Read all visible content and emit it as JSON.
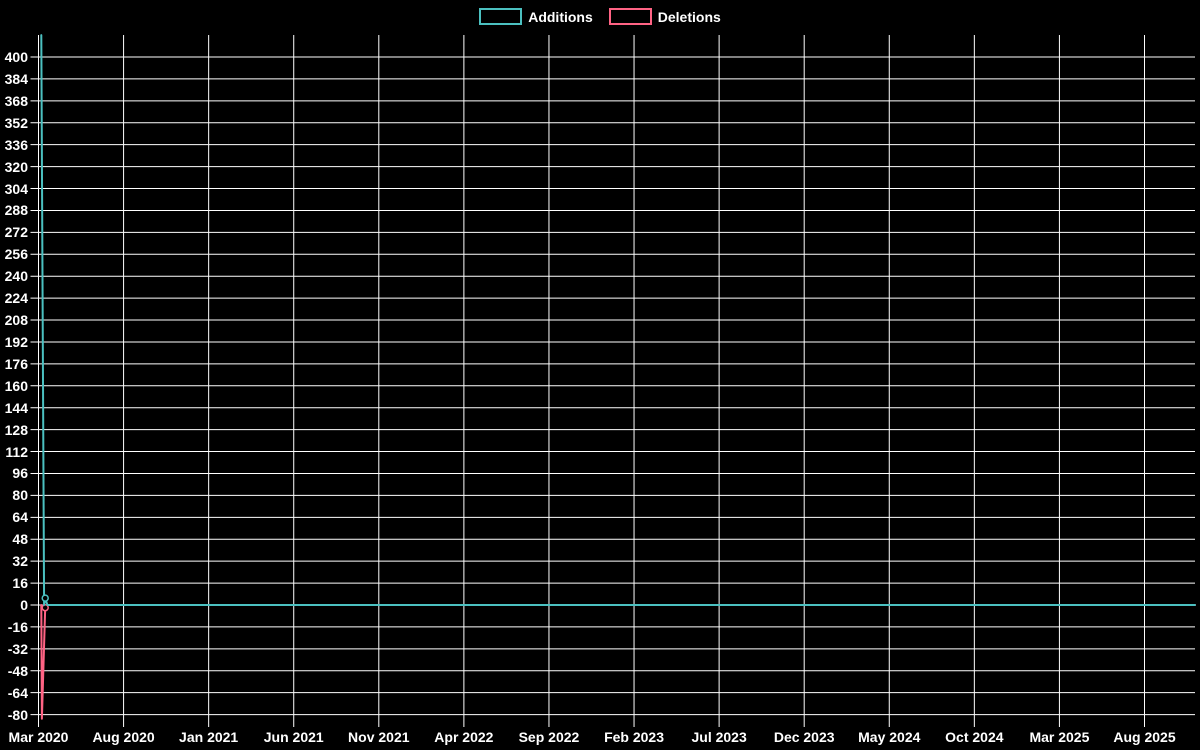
{
  "legend": {
    "items": [
      {
        "label": "Additions",
        "color": "#4bc0c0"
      },
      {
        "label": "Deletions",
        "color": "#ff6384"
      }
    ]
  },
  "colors": {
    "background": "#000000",
    "grid": "#ffffff",
    "text": "#ffffff",
    "additions": "#4bc0c0",
    "deletions": "#ff6384"
  },
  "chart_data": {
    "type": "line",
    "title": "",
    "xlabel": "",
    "ylabel": "",
    "legend_position": "top",
    "grid": true,
    "background": "#000000",
    "ylim": [
      -83,
      416
    ],
    "y_tick_step": 16,
    "y_tick_values": [
      400,
      384,
      368,
      352,
      336,
      320,
      304,
      288,
      272,
      256,
      240,
      224,
      208,
      192,
      176,
      160,
      144,
      128,
      112,
      96,
      80,
      64,
      48,
      32,
      16,
      0,
      -16,
      -32,
      -48,
      -64,
      -80
    ],
    "x_tick_labels": [
      "Mar 2020",
      "Aug 2020",
      "Jan 2021",
      "Jun 2021",
      "Nov 2021",
      "Apr 2022",
      "Sep 2022",
      "Feb 2023",
      "Jul 2023",
      "Dec 2023",
      "May 2024",
      "Oct 2024",
      "Mar 2025",
      "Aug 2025"
    ],
    "x_tick_interval_months": 5,
    "series": [
      {
        "name": "Additions",
        "color": "#4bc0c0",
        "points": [
          [
            "2020-03-06",
            416
          ],
          [
            "2020-03-11",
            0
          ],
          [
            "2020-03-13",
            5
          ],
          [
            "2020-03-17",
            0
          ],
          [
            "2025-11-01",
            0
          ]
        ],
        "markers": [
          [
            "2020-03-13",
            5
          ]
        ]
      },
      {
        "name": "Deletions",
        "color": "#ff6384",
        "points": [
          [
            "2020-03-06",
            0
          ],
          [
            "2020-03-07",
            -83
          ],
          [
            "2020-03-13",
            -2
          ],
          [
            "2020-03-17",
            0
          ],
          [
            "2025-11-01",
            0
          ]
        ],
        "markers": [
          [
            "2020-03-13",
            -2
          ]
        ]
      }
    ]
  }
}
